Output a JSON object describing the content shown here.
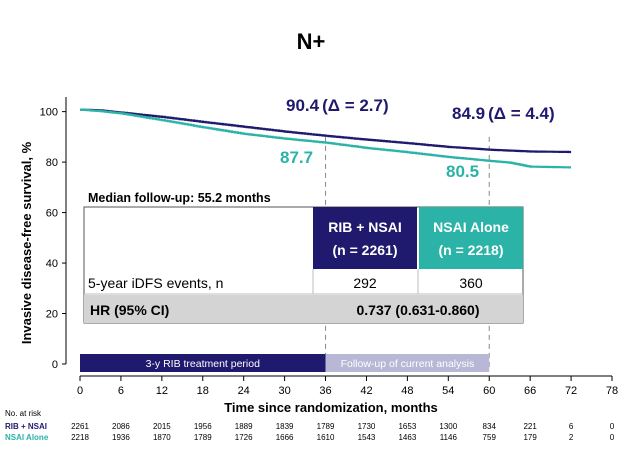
{
  "chart_data": {
    "type": "line",
    "title": "N+",
    "xlabel": "Time since randomization, months",
    "ylabel": "Invasive disease-free survival, %",
    "xlim": [
      0,
      78
    ],
    "ylim": [
      0,
      105
    ],
    "xticks": [
      0,
      6,
      12,
      18,
      24,
      30,
      36,
      42,
      48,
      54,
      60,
      66,
      72,
      78
    ],
    "yticks": [
      0,
      20,
      40,
      60,
      80,
      100
    ],
    "series": [
      {
        "name": "RIB + NSAI",
        "color": "#1f1a6e",
        "x": [
          0,
          3,
          6,
          12,
          18,
          24,
          30,
          36,
          42,
          48,
          54,
          60,
          66,
          72
        ],
        "y": [
          100.8,
          100.5,
          99.6,
          97.9,
          95.9,
          94.0,
          92.1,
          90.4,
          88.9,
          87.5,
          86.0,
          84.9,
          84.2,
          84.0
        ]
      },
      {
        "name": "NSAI Alone",
        "color": "#2bb3a7",
        "x": [
          0,
          3,
          6,
          12,
          18,
          24,
          30,
          36,
          42,
          48,
          54,
          60,
          63,
          66,
          70,
          72
        ],
        "y": [
          100.8,
          100.2,
          99.3,
          96.6,
          93.8,
          91.2,
          89.3,
          87.7,
          85.6,
          83.9,
          82.0,
          80.5,
          79.8,
          78.2,
          78.0,
          77.9
        ]
      }
    ],
    "annotations": {
      "rib_3y": "90.4",
      "rib_3y_delta": "(Δ = 2.7)",
      "nsai_3y": "87.7",
      "rib_5y": "84.9",
      "rib_5y_delta": "(Δ = 4.4)",
      "nsai_5y": "80.5"
    },
    "vlines": [
      36,
      60
    ]
  },
  "table": {
    "median_followup": "Median follow-up: 55.2 months",
    "col_rib_line1": "RIB + NSAI",
    "col_rib_line2": "(n = 2261)",
    "col_nsai_line1": "NSAI Alone",
    "col_nsai_line2": "(n = 2218)",
    "row1_label": "5-year iDFS events, n",
    "row1_rib": "292",
    "row1_nsai": "360",
    "row2_label": "HR (95% CI)",
    "row2_value": "0.737 (0.631-0.860)"
  },
  "periods": {
    "treatment_label": "3-y RIB treatment period",
    "treatment_range": [
      0,
      36
    ],
    "followup_label": "Follow-up of current analysis",
    "followup_range": [
      36,
      60
    ]
  },
  "at_risk": {
    "header": "No. at risk",
    "rows": [
      {
        "label": "RIB + NSAI",
        "color": "#1f1a6e",
        "values": [
          "2261",
          "2086",
          "2015",
          "1956",
          "1889",
          "1839",
          "1789",
          "1730",
          "1653",
          "1300",
          "834",
          "221",
          "6",
          "0"
        ]
      },
      {
        "label": "NSAI Alone",
        "color": "#2bb3a7",
        "values": [
          "2218",
          "1936",
          "1870",
          "1789",
          "1726",
          "1666",
          "1610",
          "1543",
          "1463",
          "1146",
          "759",
          "179",
          "2",
          "0"
        ]
      }
    ]
  }
}
